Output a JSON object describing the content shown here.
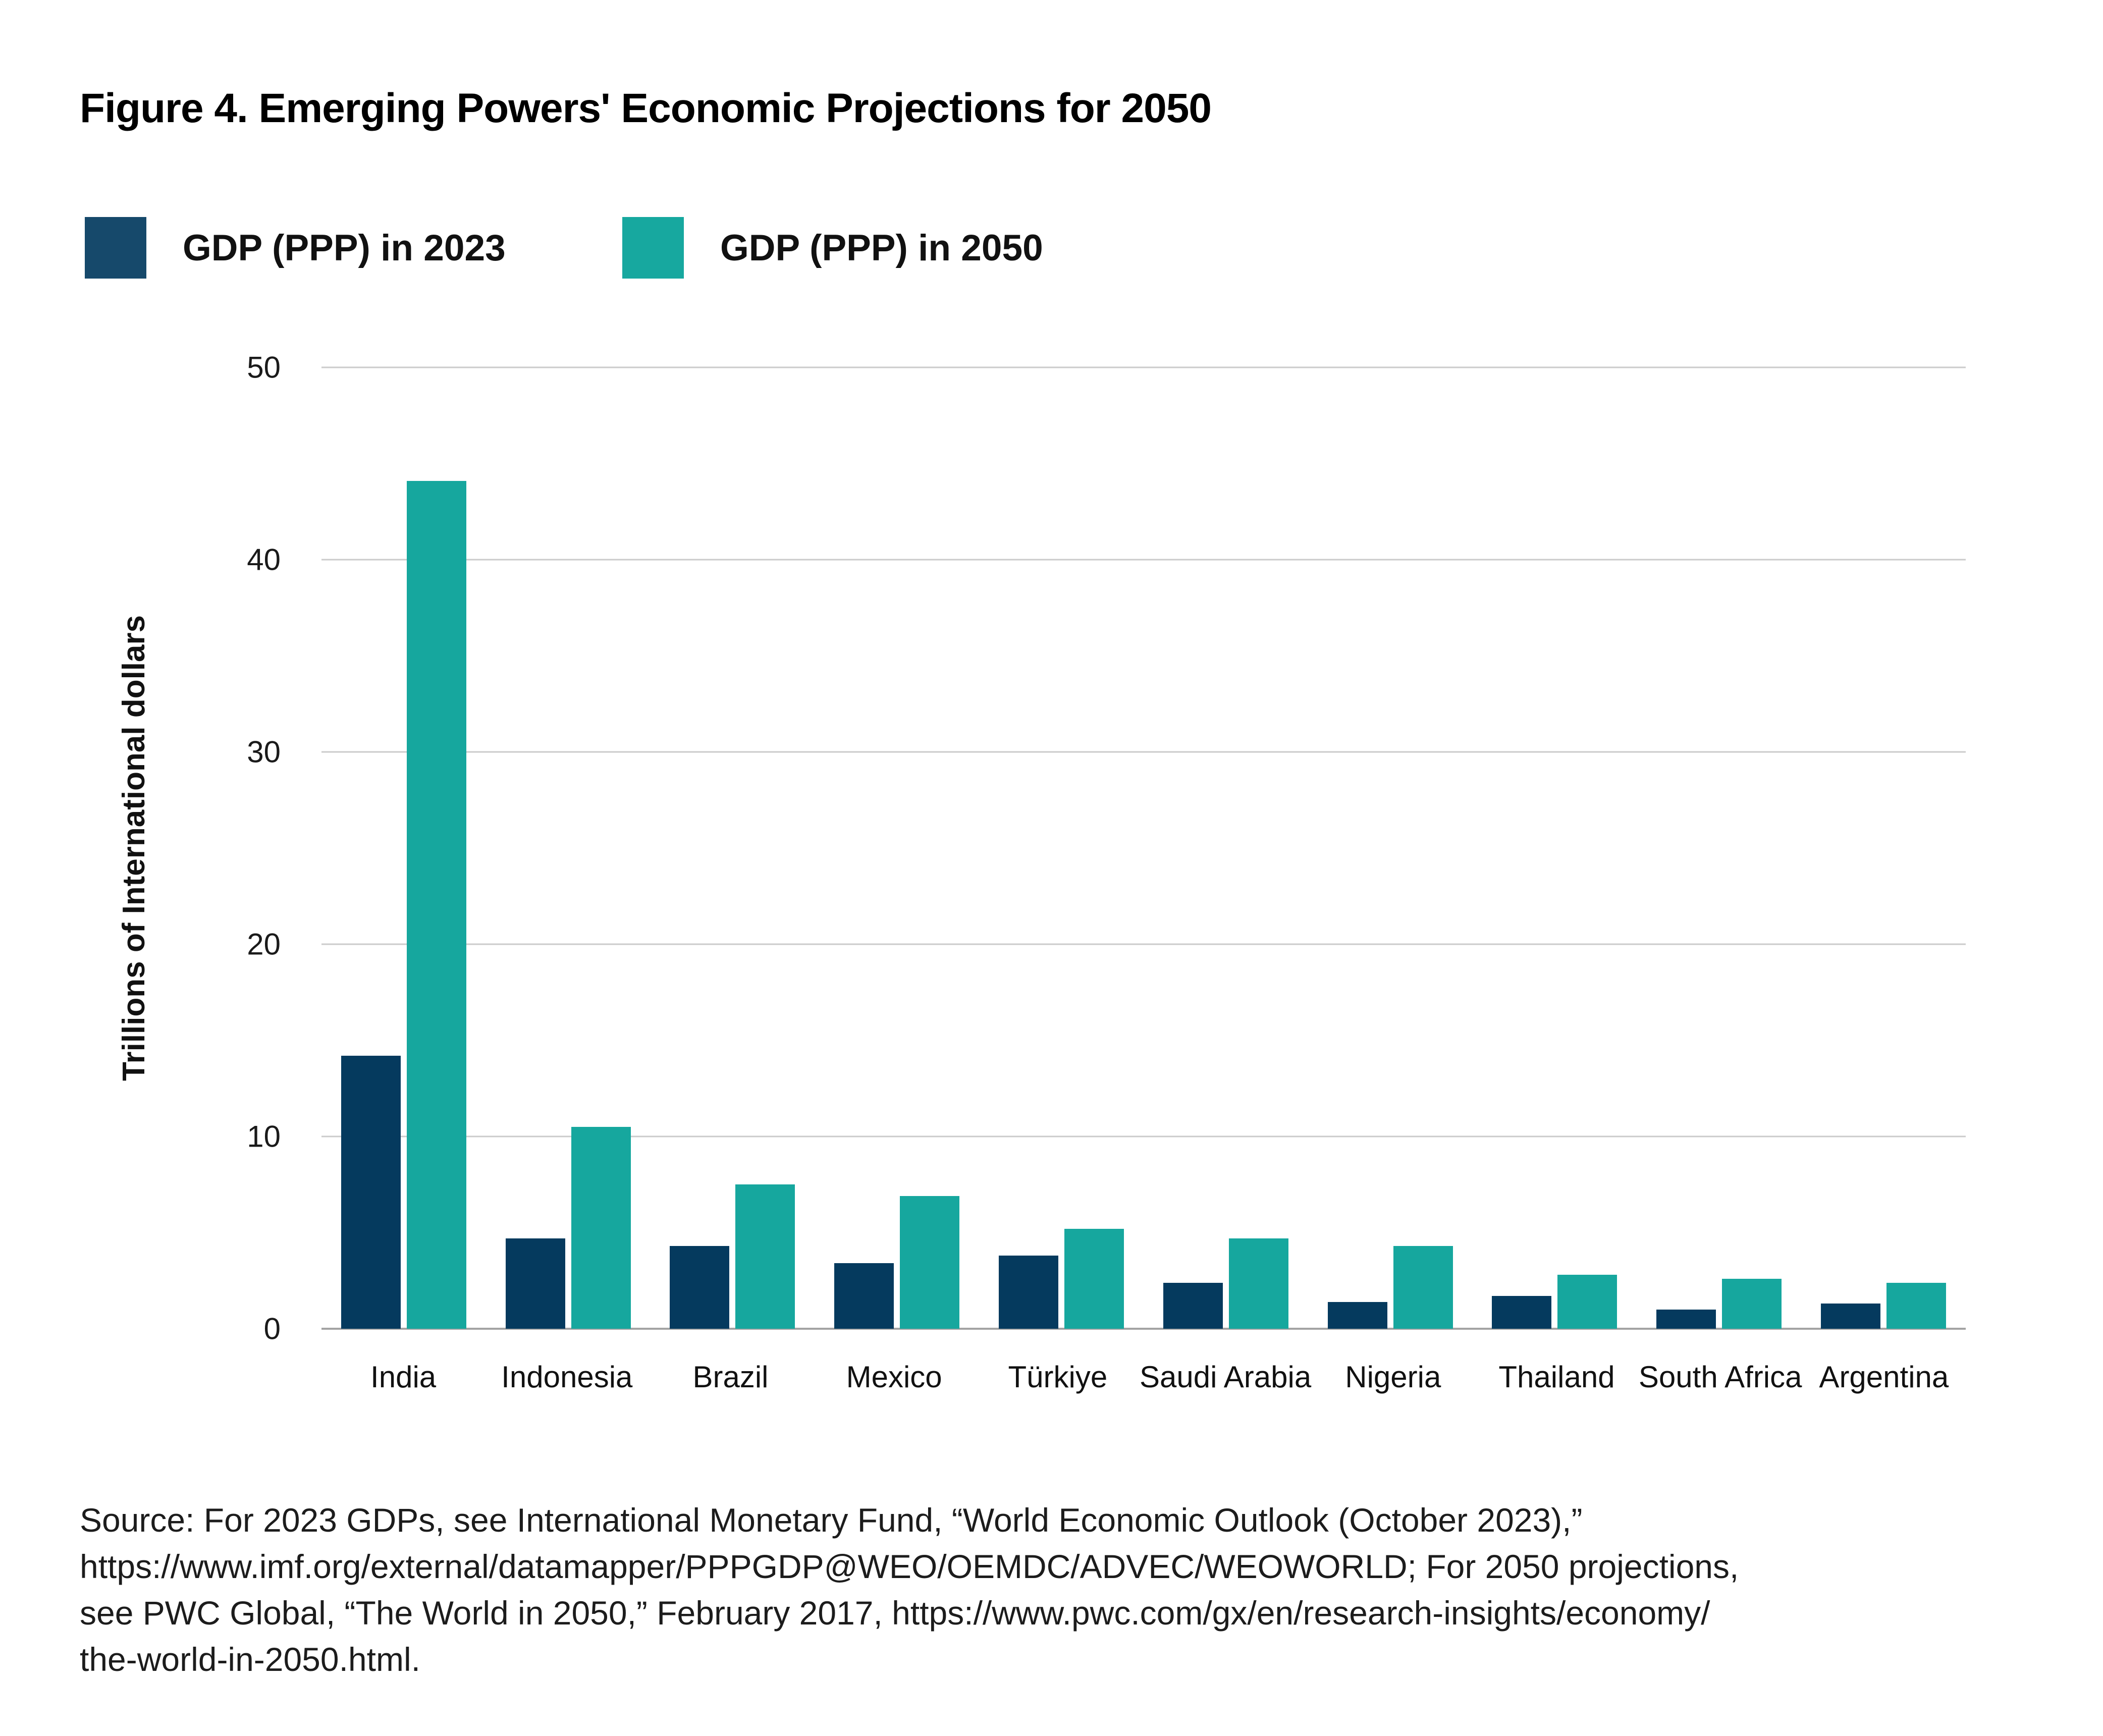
{
  "page": {
    "title": "Figure 4. Emerging Powers' Economic Projections for 2050"
  },
  "legend": [
    {
      "label": "GDP (PPP) in 2023",
      "color": "#16496b"
    },
    {
      "label": "GDP (PPP) in 2050",
      "color": "#17a89f"
    }
  ],
  "chart_data": {
    "type": "bar",
    "title": "Figure 4. Emerging Powers' Economic Projections for 2050",
    "categories": [
      "India",
      "Indonesia",
      "Brazil",
      "Mexico",
      "Türkiye",
      "Saudi Arabia",
      "Nigeria",
      "Thailand",
      "South Africa",
      "Argentina"
    ],
    "series": [
      {
        "name": "GDP (PPP) in 2023",
        "color": "#053a5e",
        "values": [
          14.2,
          4.7,
          4.3,
          3.4,
          3.8,
          2.4,
          1.4,
          1.7,
          1.0,
          1.3
        ]
      },
      {
        "name": "GDP (PPP) in 2050",
        "color": "#16a79e",
        "values": [
          44.1,
          10.5,
          7.5,
          6.9,
          5.2,
          4.7,
          4.3,
          2.8,
          2.6,
          2.4
        ]
      }
    ],
    "xlabel": "",
    "ylabel": "Trillions of International dollars",
    "yticks": [
      0,
      10,
      20,
      30,
      40,
      50
    ],
    "ylim": [
      0,
      50
    ],
    "grid": true,
    "legend_position": "top-left"
  },
  "source": {
    "lines": [
      "Source: For 2023 GDPs, see International Monetary Fund, “World Economic Outlook (October 2023),”",
      "https://www.imf.org/external/datamapper/PPPGDP@WEO/OEMDC/ADVEC/WEOWORLD; For 2050 projections,",
      "see PWC Global, “The World in 2050,” February 2017, https://www.pwc.com/gx/en/research-insights/economy/",
      "the-world-in-2050.html."
    ]
  }
}
